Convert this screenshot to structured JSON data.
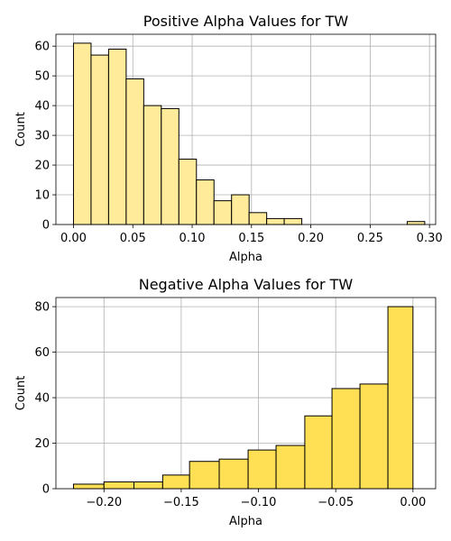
{
  "chart_data": [
    {
      "type": "bar",
      "title": "Positive Alpha Values for TW",
      "xlabel": "Alpha",
      "ylabel": "Count",
      "xlim": [
        -0.0148,
        0.3052
      ],
      "ylim": [
        0,
        64
      ],
      "xticks": [
        0.0,
        0.05,
        0.1,
        0.15,
        0.2,
        0.25,
        0.3
      ],
      "xtick_labels": [
        "0.00",
        "0.05",
        "0.10",
        "0.15",
        "0.20",
        "0.25",
        "0.30"
      ],
      "yticks": [
        0,
        10,
        20,
        30,
        40,
        50,
        60
      ],
      "ytick_labels": [
        "0",
        "10",
        "20",
        "30",
        "40",
        "50",
        "60"
      ],
      "grid": true,
      "bar_color": "#ffeb99",
      "bins": [
        {
          "x0": 0.0,
          "x1": 0.0148,
          "count": 61
        },
        {
          "x0": 0.0148,
          "x1": 0.0296,
          "count": 57
        },
        {
          "x0": 0.0296,
          "x1": 0.0444,
          "count": 59
        },
        {
          "x0": 0.0444,
          "x1": 0.0592,
          "count": 49
        },
        {
          "x0": 0.0592,
          "x1": 0.074,
          "count": 40
        },
        {
          "x0": 0.074,
          "x1": 0.0888,
          "count": 39
        },
        {
          "x0": 0.0888,
          "x1": 0.1036,
          "count": 22
        },
        {
          "x0": 0.1036,
          "x1": 0.1184,
          "count": 15
        },
        {
          "x0": 0.1184,
          "x1": 0.1332,
          "count": 8
        },
        {
          "x0": 0.1332,
          "x1": 0.148,
          "count": 10
        },
        {
          "x0": 0.148,
          "x1": 0.1628,
          "count": 4
        },
        {
          "x0": 0.1628,
          "x1": 0.1776,
          "count": 2
        },
        {
          "x0": 0.1776,
          "x1": 0.1924,
          "count": 2
        },
        {
          "x0": 0.1924,
          "x1": 0.2072,
          "count": 0
        },
        {
          "x0": 0.2072,
          "x1": 0.222,
          "count": 0
        },
        {
          "x0": 0.222,
          "x1": 0.2368,
          "count": 0
        },
        {
          "x0": 0.2368,
          "x1": 0.2516,
          "count": 0
        },
        {
          "x0": 0.2516,
          "x1": 0.2664,
          "count": 0
        },
        {
          "x0": 0.2664,
          "x1": 0.2812,
          "count": 0
        },
        {
          "x0": 0.2812,
          "x1": 0.296,
          "count": 1
        }
      ]
    },
    {
      "type": "bar",
      "title": "Negative Alpha Values for TW",
      "xlabel": "Alpha",
      "ylabel": "Count",
      "xlim": [
        -0.2311,
        0.0147
      ],
      "ylim": [
        0,
        84
      ],
      "xticks": [
        -0.2,
        -0.15,
        -0.1,
        -0.05,
        0.0
      ],
      "xtick_labels": [
        "−0.20",
        "−0.15",
        "−0.10",
        "−0.05",
        "0.00"
      ],
      "yticks": [
        0,
        20,
        40,
        60,
        80
      ],
      "ytick_labels": [
        "0",
        "20",
        "40",
        "60",
        "80"
      ],
      "grid": true,
      "bar_color": "#ffe055",
      "bins": [
        {
          "x0": -0.2197,
          "x1": -0.2,
          "count": 2
        },
        {
          "x0": -0.2,
          "x1": -0.1806,
          "count": 3
        },
        {
          "x0": -0.1806,
          "x1": -0.162,
          "count": 3
        },
        {
          "x0": -0.162,
          "x1": -0.1446,
          "count": 6
        },
        {
          "x0": -0.1446,
          "x1": -0.1254,
          "count": 12
        },
        {
          "x0": -0.1254,
          "x1": -0.1067,
          "count": 13
        },
        {
          "x0": -0.1067,
          "x1": -0.0886,
          "count": 17
        },
        {
          "x0": -0.0886,
          "x1": -0.07,
          "count": 19
        },
        {
          "x0": -0.07,
          "x1": -0.0524,
          "count": 32
        },
        {
          "x0": -0.0524,
          "x1": -0.0343,
          "count": 44
        },
        {
          "x0": -0.0343,
          "x1": -0.0162,
          "count": 46
        },
        {
          "x0": -0.0162,
          "x1": 0.0,
          "count": 80
        }
      ]
    }
  ]
}
